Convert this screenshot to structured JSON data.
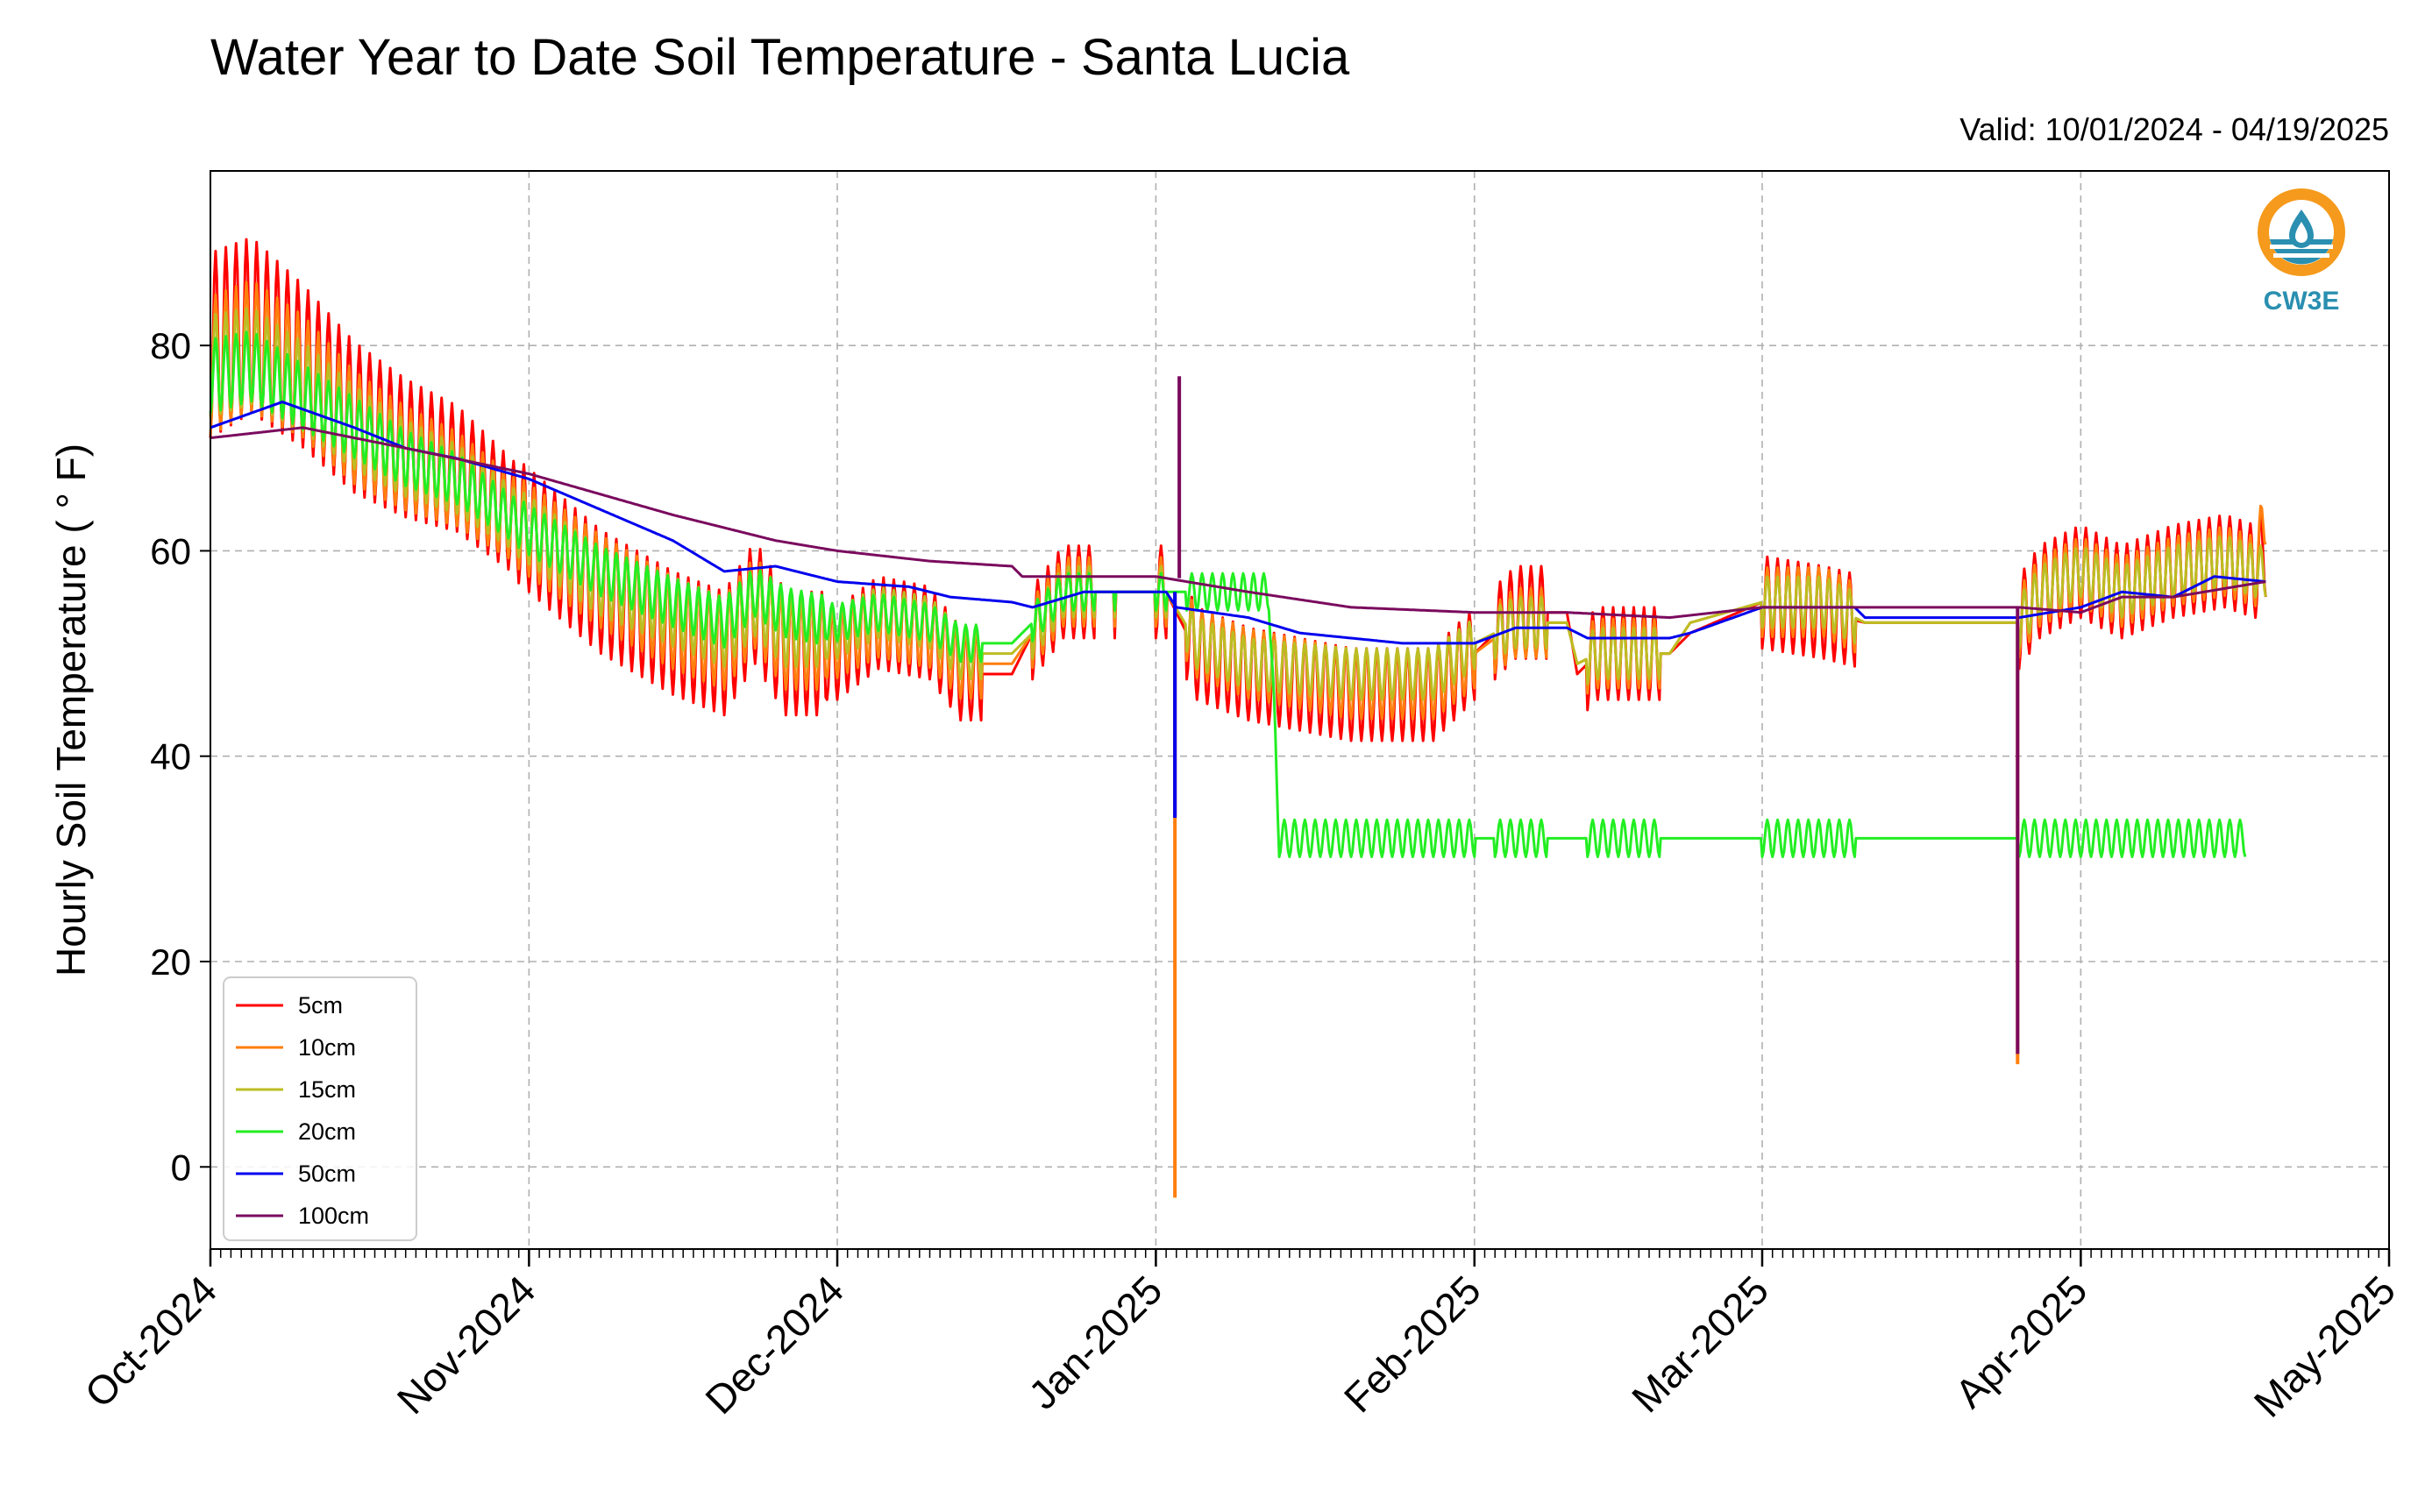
{
  "chart_data": {
    "type": "line",
    "title": "Water Year to Date Soil Temperature - Santa Lucia",
    "valid_label": "Valid: 10/01/2024 - 04/19/2025",
    "ylabel": "Hourly Soil Temperature ( ° F)",
    "xlabel": "",
    "x_type": "date",
    "xlim": [
      "2024-10-01",
      "2025-05-01"
    ],
    "ylim": [
      -8,
      97
    ],
    "yticks": [
      0,
      20,
      40,
      60,
      80
    ],
    "xticks": [
      {
        "date": "2024-10-01",
        "label": "Oct-2024"
      },
      {
        "date": "2024-11-01",
        "label": "Nov-2024"
      },
      {
        "date": "2024-12-01",
        "label": "Dec-2024"
      },
      {
        "date": "2025-01-01",
        "label": "Jan-2025"
      },
      {
        "date": "2025-02-01",
        "label": "Feb-2025"
      },
      {
        "date": "2025-03-01",
        "label": "Mar-2025"
      },
      {
        "date": "2025-04-01",
        "label": "Apr-2025"
      },
      {
        "date": "2025-05-01",
        "label": "May-2025"
      }
    ],
    "grid": true,
    "legend_position": "bottom-left",
    "logo_text": "CW3E",
    "series": [
      {
        "name": "5cm",
        "color": "#ff0000",
        "amplitude": 1.0,
        "points": [
          [
            "2024-10-01",
            80
          ],
          [
            "2024-10-05",
            82
          ],
          [
            "2024-10-10",
            78
          ],
          [
            "2024-10-15",
            73
          ],
          [
            "2024-10-20",
            70
          ],
          [
            "2024-10-25",
            68
          ],
          [
            "2024-11-01",
            62
          ],
          [
            "2024-11-08",
            56
          ],
          [
            "2024-11-15",
            52
          ],
          [
            "2024-11-20",
            50
          ],
          [
            "2024-11-23",
            55
          ],
          [
            "2024-11-26",
            50
          ],
          [
            "2024-12-01",
            50
          ],
          [
            "2024-12-05",
            53
          ],
          [
            "2024-12-10",
            52
          ],
          [
            "2024-12-13",
            48
          ],
          [
            "2024-12-18",
            48
          ],
          [
            "2024-12-20",
            52
          ],
          [
            "2024-12-23",
            56
          ],
          [
            "2025-01-01",
            56
          ],
          [
            "2025-01-02",
            56
          ],
          [
            "2025-01-05",
            50
          ],
          [
            "2025-01-10",
            48
          ],
          [
            "2025-01-20",
            46
          ],
          [
            "2025-01-28",
            46
          ],
          [
            "2025-02-01",
            50
          ],
          [
            "2025-02-05",
            54
          ],
          [
            "2025-02-10",
            54
          ],
          [
            "2025-02-11",
            48
          ],
          [
            "2025-02-13",
            50
          ],
          [
            "2025-02-20",
            50
          ],
          [
            "2025-02-22",
            52
          ],
          [
            "2025-03-01",
            55
          ],
          [
            "2025-03-07",
            54
          ],
          [
            "2025-03-11",
            53
          ],
          [
            "2025-03-20",
            53
          ],
          [
            "2025-03-26",
            53
          ],
          [
            "2025-03-28",
            56
          ],
          [
            "2025-04-01",
            58
          ],
          [
            "2025-04-05",
            56
          ],
          [
            "2025-04-10",
            58
          ],
          [
            "2025-04-15",
            59
          ],
          [
            "2025-04-18",
            58
          ],
          [
            "2025-04-19",
            60
          ]
        ],
        "drops": [
          {
            "date": "2025-01-02",
            "value": 34
          }
        ]
      },
      {
        "name": "10cm",
        "color": "#ff7f0e",
        "amplitude": 0.75,
        "points": [
          [
            "2024-10-01",
            78
          ],
          [
            "2024-10-05",
            80
          ],
          [
            "2024-10-10",
            77
          ],
          [
            "2024-10-15",
            72
          ],
          [
            "2024-10-20",
            69
          ],
          [
            "2024-10-25",
            67
          ],
          [
            "2024-11-01",
            62
          ],
          [
            "2024-11-08",
            57
          ],
          [
            "2024-11-15",
            53
          ],
          [
            "2024-11-20",
            51
          ],
          [
            "2024-11-23",
            55
          ],
          [
            "2024-11-26",
            51
          ],
          [
            "2024-12-01",
            51
          ],
          [
            "2024-12-05",
            53
          ],
          [
            "2024-12-10",
            52
          ],
          [
            "2024-12-13",
            49
          ],
          [
            "2024-12-18",
            49
          ],
          [
            "2024-12-20",
            52
          ],
          [
            "2024-12-23",
            56
          ],
          [
            "2025-01-01",
            56
          ],
          [
            "2025-01-02",
            56
          ],
          [
            "2025-01-05",
            51
          ],
          [
            "2025-01-10",
            49
          ],
          [
            "2025-01-20",
            47
          ],
          [
            "2025-01-28",
            47
          ],
          [
            "2025-02-01",
            50
          ],
          [
            "2025-02-05",
            53
          ],
          [
            "2025-02-10",
            53
          ],
          [
            "2025-02-11",
            49
          ],
          [
            "2025-02-13",
            50
          ],
          [
            "2025-02-20",
            50
          ],
          [
            "2025-02-22",
            53
          ],
          [
            "2025-03-01",
            55
          ],
          [
            "2025-03-07",
            55
          ],
          [
            "2025-03-11",
            53
          ],
          [
            "2025-03-20",
            53
          ],
          [
            "2025-03-26",
            53
          ],
          [
            "2025-03-28",
            56
          ],
          [
            "2025-04-01",
            58
          ],
          [
            "2025-04-05",
            56
          ],
          [
            "2025-04-10",
            58
          ],
          [
            "2025-04-15",
            59
          ],
          [
            "2025-04-18",
            58
          ],
          [
            "2025-04-19",
            64
          ]
        ],
        "drops": [
          {
            "date": "2025-01-02",
            "value": -3
          },
          {
            "date": "2025-03-25",
            "value": 10
          }
        ]
      },
      {
        "name": "15cm",
        "color": "#bcbd22",
        "amplitude": 0.55,
        "points": [
          [
            "2024-10-01",
            78
          ],
          [
            "2024-10-05",
            79
          ],
          [
            "2024-10-10",
            76
          ],
          [
            "2024-10-15",
            72
          ],
          [
            "2024-10-20",
            69
          ],
          [
            "2024-10-25",
            67
          ],
          [
            "2024-11-01",
            62
          ],
          [
            "2024-11-08",
            57
          ],
          [
            "2024-11-15",
            54
          ],
          [
            "2024-11-20",
            52
          ],
          [
            "2024-11-23",
            55
          ],
          [
            "2024-11-26",
            52
          ],
          [
            "2024-12-01",
            52
          ],
          [
            "2024-12-05",
            54
          ],
          [
            "2024-12-10",
            53
          ],
          [
            "2024-12-13",
            50
          ],
          [
            "2024-12-18",
            50
          ],
          [
            "2024-12-20",
            52
          ],
          [
            "2024-12-23",
            56
          ],
          [
            "2025-01-01",
            56
          ],
          [
            "2025-01-02",
            56
          ],
          [
            "2025-01-05",
            51
          ],
          [
            "2025-01-10",
            49
          ],
          [
            "2025-01-20",
            48
          ],
          [
            "2025-01-28",
            48
          ],
          [
            "2025-02-01",
            51
          ],
          [
            "2025-02-05",
            53
          ],
          [
            "2025-02-10",
            53
          ],
          [
            "2025-02-11",
            49
          ],
          [
            "2025-02-13",
            50
          ],
          [
            "2025-02-20",
            50
          ],
          [
            "2025-02-22",
            53
          ],
          [
            "2025-03-01",
            55
          ],
          [
            "2025-03-07",
            55
          ],
          [
            "2025-03-11",
            53
          ],
          [
            "2025-03-20",
            53
          ],
          [
            "2025-03-26",
            53
          ],
          [
            "2025-03-28",
            56
          ],
          [
            "2025-04-01",
            58
          ],
          [
            "2025-04-05",
            56
          ],
          [
            "2025-04-10",
            58
          ],
          [
            "2025-04-15",
            59
          ],
          [
            "2025-04-18",
            58
          ],
          [
            "2025-04-19",
            58
          ]
        ],
        "drops": []
      },
      {
        "name": "20cm",
        "color": "#22ee22",
        "amplitude": 0.4,
        "points": [
          [
            "2024-10-01",
            77
          ],
          [
            "2024-10-05",
            78
          ],
          [
            "2024-10-10",
            75
          ],
          [
            "2024-10-15",
            72
          ],
          [
            "2024-10-20",
            69
          ],
          [
            "2024-10-25",
            67
          ],
          [
            "2024-11-01",
            62
          ],
          [
            "2024-11-08",
            58
          ],
          [
            "2024-11-15",
            55
          ],
          [
            "2024-11-20",
            53
          ],
          [
            "2024-11-23",
            56
          ],
          [
            "2024-11-26",
            54
          ],
          [
            "2024-12-01",
            53
          ],
          [
            "2024-12-05",
            54
          ],
          [
            "2024-12-10",
            53
          ],
          [
            "2024-12-13",
            51
          ],
          [
            "2024-12-18",
            51
          ],
          [
            "2024-12-20",
            53
          ],
          [
            "2024-12-23",
            56
          ],
          [
            "2025-01-01",
            56
          ],
          [
            "2025-01-10",
            56
          ],
          [
            "2025-01-12",
            56
          ],
          [
            "2025-01-13",
            32
          ],
          [
            "2025-04-17",
            32
          ]
        ],
        "drops": []
      },
      {
        "name": "50cm",
        "color": "#0000ee",
        "amplitude": 0.0,
        "points": [
          [
            "2024-10-01",
            72
          ],
          [
            "2024-10-08",
            74.5
          ],
          [
            "2024-10-15",
            72
          ],
          [
            "2024-10-20",
            70
          ],
          [
            "2024-10-25",
            69
          ],
          [
            "2024-11-01",
            67
          ],
          [
            "2024-11-08",
            64
          ],
          [
            "2024-11-15",
            61
          ],
          [
            "2024-11-20",
            58
          ],
          [
            "2024-11-25",
            58.5
          ],
          [
            "2024-12-01",
            57
          ],
          [
            "2024-12-08",
            56.5
          ],
          [
            "2024-12-12",
            55.5
          ],
          [
            "2024-12-18",
            55
          ],
          [
            "2024-12-20",
            54.5
          ],
          [
            "2024-12-25",
            56
          ],
          [
            "2025-01-01",
            56
          ],
          [
            "2025-01-02",
            56
          ],
          [
            "2025-01-03",
            54.5
          ],
          [
            "2025-01-10",
            53.5
          ],
          [
            "2025-01-15",
            52
          ],
          [
            "2025-01-25",
            51
          ],
          [
            "2025-02-01",
            51
          ],
          [
            "2025-02-05",
            52.5
          ],
          [
            "2025-02-10",
            52.5
          ],
          [
            "2025-02-12",
            51.5
          ],
          [
            "2025-02-20",
            51.5
          ],
          [
            "2025-02-22",
            52
          ],
          [
            "2025-03-01",
            54.5
          ],
          [
            "2025-03-10",
            54.5
          ],
          [
            "2025-03-11",
            53.5
          ],
          [
            "2025-03-20",
            53.5
          ],
          [
            "2025-03-26",
            53.5
          ],
          [
            "2025-04-01",
            54.5
          ],
          [
            "2025-04-05",
            56
          ],
          [
            "2025-04-10",
            55.5
          ],
          [
            "2025-04-14",
            57.5
          ],
          [
            "2025-04-19",
            57
          ]
        ],
        "drops": [
          {
            "date": "2025-01-02",
            "value": 34
          }
        ]
      },
      {
        "name": "100cm",
        "color": "#7a0a5e",
        "amplitude": 0.0,
        "points": [
          [
            "2024-10-01",
            71
          ],
          [
            "2024-10-10",
            72
          ],
          [
            "2024-10-20",
            70
          ],
          [
            "2024-11-01",
            67.5
          ],
          [
            "2024-11-15",
            63.5
          ],
          [
            "2024-11-25",
            61
          ],
          [
            "2024-12-01",
            60
          ],
          [
            "2024-12-10",
            59
          ],
          [
            "2024-12-18",
            58.5
          ],
          [
            "2024-12-19",
            57.5
          ],
          [
            "2025-01-01",
            57.5
          ],
          [
            "2025-01-10",
            56
          ],
          [
            "2025-01-20",
            54.5
          ],
          [
            "2025-02-01",
            54
          ],
          [
            "2025-02-10",
            54
          ],
          [
            "2025-02-20",
            53.5
          ],
          [
            "2025-03-01",
            54.5
          ],
          [
            "2025-03-10",
            54.5
          ],
          [
            "2025-03-26",
            54.5
          ],
          [
            "2025-04-01",
            54
          ],
          [
            "2025-04-05",
            55.5
          ],
          [
            "2025-04-10",
            55.5
          ],
          [
            "2025-04-19",
            57
          ]
        ],
        "drops": [
          {
            "date": "2025-03-25",
            "value": 11
          }
        ],
        "spikes": [
          {
            "date": "2025-01-02",
            "value": 77
          }
        ]
      }
    ]
  }
}
